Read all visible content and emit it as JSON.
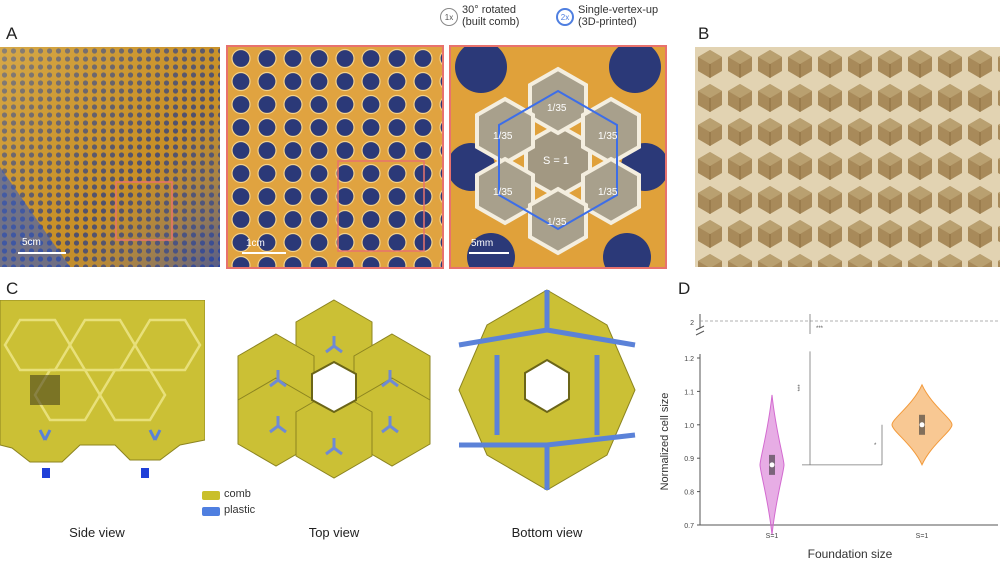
{
  "panels": {
    "A": "A",
    "B": "B",
    "C": "C",
    "D": "D"
  },
  "legend_top": {
    "item1_badge": "1x",
    "item1_line1": "30° rotated",
    "item1_line2": "(built comb)",
    "item2_badge": "2x",
    "item2_line1": "Single-vertex-up",
    "item2_line2": "(3D-printed)"
  },
  "scale_bars": {
    "a1": "5cm",
    "a2": "1cm",
    "a3": "5mm"
  },
  "cell_labels": {
    "center": "S = 1",
    "top": "1/35",
    "upper_left": "1/35",
    "upper_right": "1/35",
    "lower_left": "1/35",
    "lower_right": "1/35",
    "bottom": "1/35"
  },
  "legend_c": {
    "comb": "comb",
    "plastic": "plastic"
  },
  "views": {
    "side": "Side view",
    "top": "Top view",
    "bottom": "Bottom view"
  },
  "colors": {
    "comb": "#c9bf2a",
    "plastic": "#4f7fe0",
    "pink": "#d36ad0",
    "orange": "#f39a3a",
    "panel_box": "#e8726d"
  },
  "chart_data": {
    "type": "violin",
    "ylabel": "Normalized cell size",
    "xlabel": "Foundation size",
    "categories": [
      "S=1",
      "S=1"
    ],
    "y_ticks": [
      "0.7",
      "0.8",
      "0.9",
      "1.0",
      "1.1",
      "1.2"
    ],
    "y_break_label": "2",
    "ylim": [
      0.7,
      1.2
    ],
    "series": [
      {
        "category": "S=1",
        "median": 0.88,
        "color": "#d36ad0"
      },
      {
        "category": "S=1",
        "median": 1.0,
        "color": "#f39a3a"
      }
    ],
    "significance": [
      "***",
      "***",
      "*"
    ]
  }
}
